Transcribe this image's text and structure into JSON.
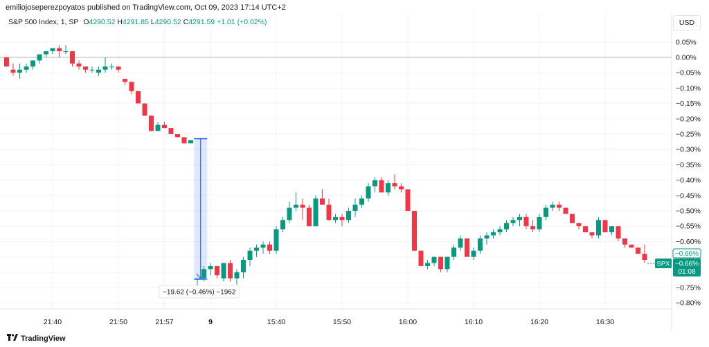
{
  "publisher_line": "emiliojoseperezpoyatos published on TradingView.com, Oct 09, 2023 17:14 UTC+2",
  "legend": {
    "symbol": "S&P 500 Index, 1, SP",
    "o_label": "O",
    "o_value": "4290.52",
    "h_label": "H",
    "h_value": "4291.85",
    "l_label": "L",
    "l_value": "4290.52",
    "c_label": "C",
    "c_value": "4291.59",
    "change": "+1.01 (+0.02%)"
  },
  "currency_button": "USD",
  "footer_brand": "TradingView",
  "colors": {
    "up": "#089981",
    "down": "#f23645",
    "measure": "#2962ff",
    "grid": "#f0f3fa"
  },
  "chart_data": {
    "type": "candlestick",
    "y_unit": "%",
    "ylim": [
      -0.83,
      0.08
    ],
    "y_ticks": [
      "0.05%",
      "0.00%",
      "−0.05%",
      "−0.10%",
      "−0.15%",
      "−0.20%",
      "−0.25%",
      "−0.30%",
      "−0.35%",
      "−0.40%",
      "−0.45%",
      "−0.50%",
      "−0.55%",
      "−0.60%",
      "−0.65%",
      "−0.70%",
      "−0.75%",
      "−0.80%"
    ],
    "y_tick_values": [
      0.05,
      0,
      -0.05,
      -0.1,
      -0.15,
      -0.2,
      -0.25,
      -0.3,
      -0.35,
      -0.4,
      -0.45,
      -0.5,
      -0.55,
      -0.6,
      -0.65,
      -0.7,
      -0.75,
      -0.8
    ],
    "x_ticks": [
      {
        "label": "21:40",
        "index": 7
      },
      {
        "label": "21:50",
        "index": 17
      },
      {
        "label": "21:57",
        "index": 24
      },
      {
        "label": "9",
        "index": 31,
        "bold": true
      },
      {
        "label": "15:40",
        "index": 41
      },
      {
        "label": "15:50",
        "index": 51
      },
      {
        "label": "16:00",
        "index": 61
      },
      {
        "label": "16:10",
        "index": 71
      },
      {
        "label": "16:20",
        "index": 81
      },
      {
        "label": "16:30",
        "index": 91
      }
    ],
    "candles": [
      [
        0.0,
        0.0,
        -0.03,
        -0.03
      ],
      [
        -0.04,
        -0.02,
        -0.06,
        -0.05
      ],
      [
        -0.05,
        -0.02,
        -0.07,
        -0.04
      ],
      [
        -0.04,
        -0.02,
        -0.05,
        -0.03
      ],
      [
        -0.03,
        -0.01,
        -0.04,
        -0.01
      ],
      [
        -0.01,
        0.01,
        -0.02,
        0.01
      ],
      [
        0.01,
        0.02,
        0.0,
        0.02
      ],
      [
        0.02,
        0.03,
        0.01,
        0.03
      ],
      [
        0.03,
        0.04,
        0.0,
        0.02
      ],
      [
        0.02,
        0.04,
        0.01,
        0.02
      ],
      [
        0.02,
        0.02,
        -0.03,
        -0.02
      ],
      [
        -0.02,
        -0.01,
        -0.04,
        -0.03
      ],
      [
        -0.03,
        -0.03,
        -0.05,
        -0.04
      ],
      [
        -0.04,
        -0.03,
        -0.05,
        -0.04
      ],
      [
        -0.05,
        -0.03,
        -0.06,
        -0.04
      ],
      [
        -0.04,
        0.0,
        -0.05,
        -0.03
      ],
      [
        -0.03,
        -0.02,
        -0.04,
        -0.03
      ],
      [
        -0.03,
        -0.03,
        -0.05,
        -0.04
      ],
      [
        -0.07,
        -0.07,
        -0.09,
        -0.08
      ],
      [
        -0.08,
        -0.08,
        -0.12,
        -0.11
      ],
      [
        -0.11,
        -0.11,
        -0.15,
        -0.15
      ],
      [
        -0.15,
        -0.15,
        -0.19,
        -0.19
      ],
      [
        -0.19,
        -0.19,
        -0.24,
        -0.24
      ],
      [
        -0.24,
        -0.21,
        -0.24,
        -0.22
      ],
      [
        -0.22,
        -0.21,
        -0.23,
        -0.23
      ],
      [
        -0.23,
        -0.23,
        -0.25,
        -0.25
      ],
      [
        -0.25,
        -0.25,
        -0.26,
        -0.26
      ],
      [
        -0.26,
        -0.26,
        -0.28,
        -0.28
      ],
      [
        -0.28,
        -0.27,
        -0.28,
        -0.27
      ],
      [
        -0.72,
        -0.72,
        -0.76,
        -0.72
      ],
      [
        -0.72,
        -0.68,
        -0.73,
        -0.69
      ],
      [
        -0.69,
        -0.67,
        -0.71,
        -0.68
      ],
      [
        -0.68,
        -0.68,
        -0.72,
        -0.71
      ],
      [
        -0.72,
        -0.67,
        -0.73,
        -0.67
      ],
      [
        -0.67,
        -0.66,
        -0.73,
        -0.72
      ],
      [
        -0.72,
        -0.69,
        -0.74,
        -0.7
      ],
      [
        -0.7,
        -0.65,
        -0.72,
        -0.66
      ],
      [
        -0.66,
        -0.62,
        -0.68,
        -0.63
      ],
      [
        -0.63,
        -0.61,
        -0.65,
        -0.62
      ],
      [
        -0.62,
        -0.6,
        -0.64,
        -0.61
      ],
      [
        -0.61,
        -0.6,
        -0.64,
        -0.63
      ],
      [
        -0.63,
        -0.55,
        -0.64,
        -0.56
      ],
      [
        -0.56,
        -0.52,
        -0.57,
        -0.53
      ],
      [
        -0.53,
        -0.47,
        -0.54,
        -0.49
      ],
      [
        -0.49,
        -0.44,
        -0.5,
        -0.48
      ],
      [
        -0.48,
        -0.46,
        -0.53,
        -0.49
      ],
      [
        -0.49,
        -0.48,
        -0.55,
        -0.55
      ],
      [
        -0.55,
        -0.45,
        -0.55,
        -0.46
      ],
      [
        -0.46,
        -0.43,
        -0.48,
        -0.48
      ],
      [
        -0.48,
        -0.46,
        -0.53,
        -0.53
      ],
      [
        -0.53,
        -0.51,
        -0.54,
        -0.52
      ],
      [
        -0.52,
        -0.51,
        -0.55,
        -0.53
      ],
      [
        -0.53,
        -0.49,
        -0.54,
        -0.5
      ],
      [
        -0.5,
        -0.46,
        -0.52,
        -0.48
      ],
      [
        -0.48,
        -0.45,
        -0.49,
        -0.46
      ],
      [
        -0.46,
        -0.41,
        -0.47,
        -0.42
      ],
      [
        -0.42,
        -0.39,
        -0.44,
        -0.4
      ],
      [
        -0.4,
        -0.39,
        -0.44,
        -0.44
      ],
      [
        -0.44,
        -0.4,
        -0.45,
        -0.41
      ],
      [
        -0.41,
        -0.38,
        -0.43,
        -0.42
      ],
      [
        -0.42,
        -0.41,
        -0.44,
        -0.43
      ],
      [
        -0.43,
        -0.43,
        -0.5,
        -0.5
      ],
      [
        -0.5,
        -0.5,
        -0.63,
        -0.63
      ],
      [
        -0.63,
        -0.63,
        -0.68,
        -0.68
      ],
      [
        -0.68,
        -0.66,
        -0.69,
        -0.67
      ],
      [
        -0.67,
        -0.65,
        -0.68,
        -0.65
      ],
      [
        -0.65,
        -0.65,
        -0.7,
        -0.69
      ],
      [
        -0.69,
        -0.65,
        -0.7,
        -0.65
      ],
      [
        -0.65,
        -0.61,
        -0.66,
        -0.62
      ],
      [
        -0.62,
        -0.58,
        -0.63,
        -0.59
      ],
      [
        -0.59,
        -0.59,
        -0.65,
        -0.65
      ],
      [
        -0.65,
        -0.62,
        -0.66,
        -0.63
      ],
      [
        -0.63,
        -0.58,
        -0.64,
        -0.59
      ],
      [
        -0.59,
        -0.57,
        -0.61,
        -0.58
      ],
      [
        -0.58,
        -0.56,
        -0.59,
        -0.57
      ],
      [
        -0.57,
        -0.55,
        -0.58,
        -0.56
      ],
      [
        -0.56,
        -0.53,
        -0.57,
        -0.54
      ],
      [
        -0.54,
        -0.52,
        -0.55,
        -0.53
      ],
      [
        -0.53,
        -0.51,
        -0.55,
        -0.52
      ],
      [
        -0.52,
        -0.51,
        -0.56,
        -0.55
      ],
      [
        -0.55,
        -0.53,
        -0.57,
        -0.56
      ],
      [
        -0.56,
        -0.51,
        -0.57,
        -0.52
      ],
      [
        -0.52,
        -0.48,
        -0.53,
        -0.49
      ],
      [
        -0.49,
        -0.47,
        -0.5,
        -0.48
      ],
      [
        -0.48,
        -0.47,
        -0.5,
        -0.49
      ],
      [
        -0.49,
        -0.49,
        -0.51,
        -0.51
      ],
      [
        -0.51,
        -0.51,
        -0.54,
        -0.54
      ],
      [
        -0.54,
        -0.54,
        -0.56,
        -0.55
      ],
      [
        -0.55,
        -0.55,
        -0.57,
        -0.57
      ],
      [
        -0.57,
        -0.57,
        -0.59,
        -0.58
      ],
      [
        -0.58,
        -0.52,
        -0.59,
        -0.53
      ],
      [
        -0.53,
        -0.53,
        -0.57,
        -0.57
      ],
      [
        -0.57,
        -0.55,
        -0.58,
        -0.55
      ],
      [
        -0.55,
        -0.55,
        -0.6,
        -0.59
      ],
      [
        -0.59,
        -0.59,
        -0.62,
        -0.61
      ],
      [
        -0.61,
        -0.61,
        -0.62,
        -0.62
      ],
      [
        -0.62,
        -0.62,
        -0.64,
        -0.64
      ],
      [
        -0.64,
        -0.61,
        -0.67,
        -0.66
      ]
    ],
    "x_values_note": "",
    "last_value_label": "−0.66%",
    "symbol_badge": "SPX",
    "badge_value": "−0.66%",
    "countdown": "01:08",
    "measure": {
      "from_index": 28.5,
      "to_index": 30.5,
      "from_value": -0.265,
      "to_value": -0.723,
      "label": "−19.62 (−0.46%) −1962"
    }
  }
}
